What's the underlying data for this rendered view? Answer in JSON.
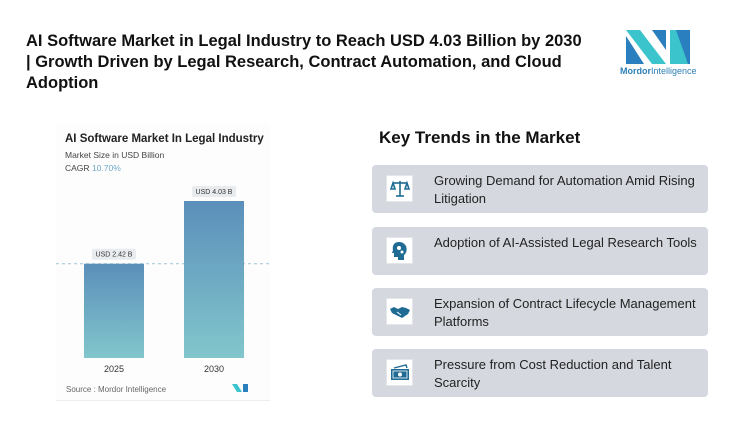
{
  "header": {
    "title": "AI Software Market in Legal Industry to Reach USD 4.03 Billion by 2030 | Growth Driven by Legal Research, Contract Automation, and Cloud Adoption"
  },
  "logo": {
    "brand1": "Mordor",
    "brand2": "Intelligence",
    "colors": [
      "#3cc4cc",
      "#2a7fbf"
    ]
  },
  "chart_data": {
    "type": "bar",
    "title": "AI Software Market In Legal Industry",
    "subtitle": "Market Size in USD Billion",
    "cagr_label": "CAGR",
    "cagr_value": "10.70%",
    "categories": [
      "2025",
      "2030"
    ],
    "values": [
      2.42,
      4.03
    ],
    "data_labels": [
      "USD 2.42 B",
      "USD 4.03 B"
    ],
    "ylim": [
      0,
      4.6
    ],
    "grid": false,
    "reference_line": 2.42,
    "colors": {
      "top": "#5b8fba",
      "bottom": "#82c6cc",
      "cagr": "#6fa6c9"
    },
    "source": "Source : Mordor Intelligence"
  },
  "trends": {
    "heading": "Key Trends in the Market",
    "items": [
      {
        "icon": "scales-icon",
        "text": "Growing Demand for Automation Amid Rising Litigation"
      },
      {
        "icon": "head-gears-icon",
        "text": "Adoption of AI-Assisted Legal Research Tools"
      },
      {
        "icon": "handshake-icon",
        "text": "Expansion of Contract Lifecycle Management Platforms"
      },
      {
        "icon": "money-icon",
        "text": "Pressure from Cost Reduction and Talent Scarcity"
      }
    ]
  }
}
